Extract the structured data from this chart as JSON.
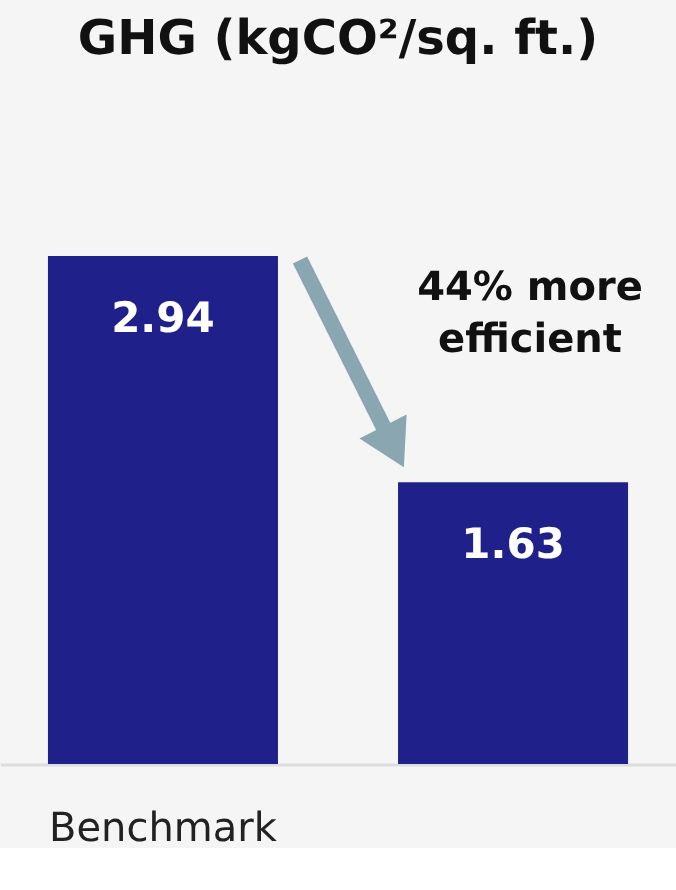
{
  "chart_data": {
    "type": "bar",
    "title": "GHG (kgCO²/sq. ft.)",
    "categories": [
      "Benchmark",
      null
    ],
    "values": [
      2.94,
      1.63
    ],
    "color": "#20208a",
    "data_labels": true,
    "annotations": [
      "44% more efficient"
    ]
  }
}
